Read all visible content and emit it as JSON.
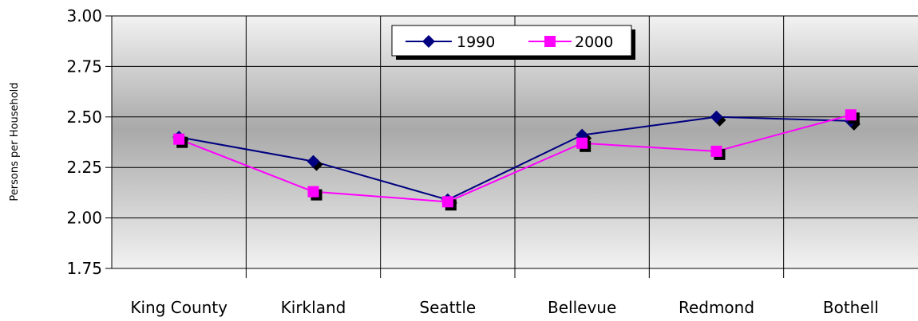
{
  "chart_data": {
    "type": "line",
    "title": "",
    "xlabel": "",
    "ylabel": "Persons per Household",
    "categories": [
      "King County",
      "Kirkland",
      "Seattle",
      "Bellevue",
      "Redmond",
      "Bothell"
    ],
    "ylim": [
      1.75,
      3.0
    ],
    "yticks": [
      "3.00",
      "2.75",
      "2.50",
      "2.25",
      "2.00",
      "1.75"
    ],
    "grid": true,
    "legend_position": "top-center",
    "series": [
      {
        "name": "1990",
        "values": [
          2.4,
          2.28,
          2.09,
          2.41,
          2.5,
          2.48
        ],
        "color": "#000080",
        "marker": "diamond"
      },
      {
        "name": "2000",
        "values": [
          2.39,
          2.13,
          2.08,
          2.37,
          2.33,
          2.51
        ],
        "color": "#ff00ff",
        "marker": "square"
      }
    ]
  }
}
